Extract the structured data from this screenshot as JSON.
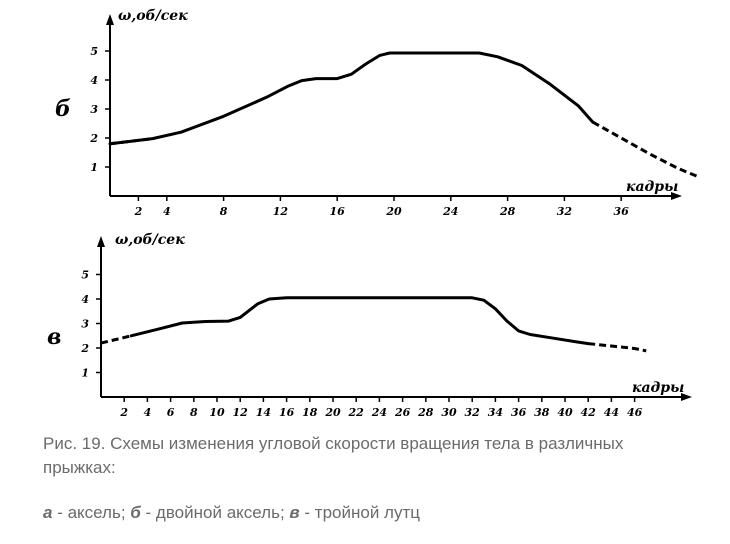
{
  "chart_data": [
    {
      "type": "line",
      "panel_label": "б",
      "ylabel": "ω,об/сек",
      "xlabel": "кадры",
      "y_ticks": [
        "1",
        "2",
        "3",
        "4",
        "5"
      ],
      "x_ticks": [
        "2",
        "4",
        "8",
        "12",
        "16",
        "20",
        "24",
        "28",
        "32",
        "36"
      ],
      "x_tick_values": [
        2,
        4,
        8,
        12,
        16,
        20,
        24,
        28,
        32,
        36
      ],
      "ylim": [
        0,
        5.9
      ],
      "xlim": [
        0,
        41
      ],
      "solid_segments": [
        [
          [
            0,
            1.8
          ],
          [
            3,
            1.98
          ],
          [
            5,
            2.2
          ],
          [
            8,
            2.75
          ],
          [
            11,
            3.4
          ],
          [
            12.5,
            3.78
          ],
          [
            13.5,
            3.98
          ],
          [
            14.5,
            4.05
          ],
          [
            16,
            4.05
          ],
          [
            17,
            4.2
          ],
          [
            18,
            4.55
          ],
          [
            19,
            4.85
          ],
          [
            19.7,
            4.93
          ],
          [
            22,
            4.93
          ],
          [
            26,
            4.93
          ],
          [
            27.3,
            4.8
          ],
          [
            29,
            4.5
          ],
          [
            31,
            3.85
          ],
          [
            33,
            3.1
          ],
          [
            34,
            2.55
          ]
        ]
      ],
      "dashed_segments": [
        [
          [
            0,
            1.8
          ],
          [
            3,
            1.98
          ]
        ],
        [
          [
            34,
            2.55
          ],
          [
            36,
            2.0
          ],
          [
            38,
            1.45
          ],
          [
            40,
            0.95
          ],
          [
            41.5,
            0.65
          ]
        ]
      ]
    },
    {
      "type": "line",
      "panel_label": "в",
      "ylabel": "ω,об/сек",
      "xlabel": "кадры",
      "y_ticks": [
        "1",
        "2",
        "3",
        "4",
        "5"
      ],
      "x_ticks": [
        "2",
        "4",
        "6",
        "8",
        "10",
        "12",
        "14",
        "16",
        "18",
        "20",
        "22",
        "24",
        "26",
        "28",
        "30",
        "32",
        "34",
        "36",
        "38",
        "40",
        "42",
        "44",
        "46"
      ],
      "x_tick_values": [
        2,
        4,
        6,
        8,
        10,
        12,
        14,
        16,
        18,
        20,
        22,
        24,
        26,
        28,
        30,
        32,
        34,
        36,
        38,
        40,
        42,
        44,
        46
      ],
      "ylim": [
        0,
        5.7
      ],
      "xlim": [
        0,
        48
      ],
      "solid_segments": [
        [
          [
            2.6,
            2.5
          ],
          [
            5,
            2.78
          ],
          [
            7,
            3.02
          ],
          [
            9,
            3.08
          ],
          [
            11,
            3.1
          ],
          [
            12,
            3.25
          ],
          [
            13.5,
            3.8
          ],
          [
            14.5,
            4.0
          ],
          [
            16,
            4.05
          ],
          [
            20,
            4.05
          ],
          [
            26,
            4.05
          ],
          [
            32,
            4.05
          ],
          [
            33,
            3.95
          ],
          [
            34,
            3.6
          ],
          [
            35,
            3.1
          ],
          [
            36,
            2.7
          ],
          [
            37,
            2.55
          ],
          [
            39,
            2.4
          ],
          [
            41,
            2.25
          ],
          [
            42,
            2.18
          ]
        ]
      ],
      "dashed_segments": [
        [
          [
            0,
            2.2
          ],
          [
            2.6,
            2.5
          ]
        ],
        [
          [
            42,
            2.18
          ],
          [
            44,
            2.08
          ],
          [
            46,
            1.98
          ],
          [
            47,
            1.88
          ]
        ]
      ]
    }
  ],
  "caption": "Рис. 19. Схемы изменения угловой скорости вращения тела в различных прыжках:",
  "legend": {
    "a_key": "а",
    "a_text": " - аксель; ",
    "b_key": "б",
    "b_text": " - двойной аксель; ",
    "c_key": "в",
    "c_text": " - тройной лутц"
  }
}
